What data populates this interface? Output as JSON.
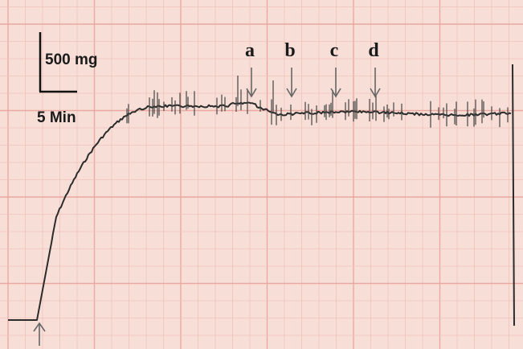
{
  "scale_bar": {
    "force": "500 mg",
    "time": "5 Min"
  },
  "markers": [
    "a",
    "b",
    "c",
    "d"
  ]
}
